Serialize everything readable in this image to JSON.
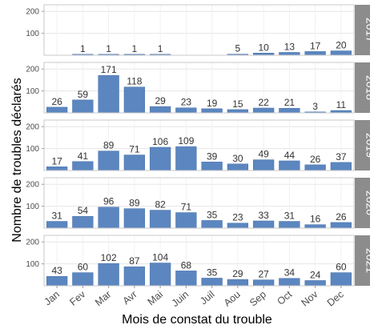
{
  "chart_data": {
    "type": "bar",
    "layout": "facet-rows",
    "xlabel": "Mois de constat du trouble",
    "ylabel": "Nombre de troubles déclarés",
    "categories": [
      "Jan",
      "Fev",
      "Mar",
      "Avr",
      "Mai",
      "Juin",
      "Juil",
      "Aou",
      "Sep",
      "Oct",
      "Nov",
      "Dec"
    ],
    "ylim": [
      0,
      230
    ],
    "yticks": [
      100,
      200
    ],
    "grid": true,
    "colors": {
      "bar": "#5b86c0",
      "bar_stroke": "#4a73ab",
      "panel_border": "#c8c8c8",
      "grid": "#e6e6e6",
      "strip": "#8c8c8c"
    },
    "facets": [
      {
        "name": "2017",
        "values": [
          null,
          1,
          1,
          1,
          1,
          null,
          null,
          5,
          10,
          13,
          17,
          20
        ]
      },
      {
        "name": "2018",
        "values": [
          26,
          59,
          171,
          118,
          29,
          23,
          19,
          15,
          22,
          21,
          3,
          11
        ]
      },
      {
        "name": "2019",
        "values": [
          17,
          41,
          89,
          71,
          106,
          109,
          39,
          30,
          49,
          44,
          26,
          37
        ]
      },
      {
        "name": "2020",
        "values": [
          31,
          54,
          96,
          89,
          82,
          71,
          35,
          23,
          33,
          31,
          16,
          26
        ]
      },
      {
        "name": "2021",
        "values": [
          43,
          60,
          102,
          87,
          104,
          68,
          35,
          29,
          27,
          34,
          24,
          60
        ]
      }
    ]
  }
}
